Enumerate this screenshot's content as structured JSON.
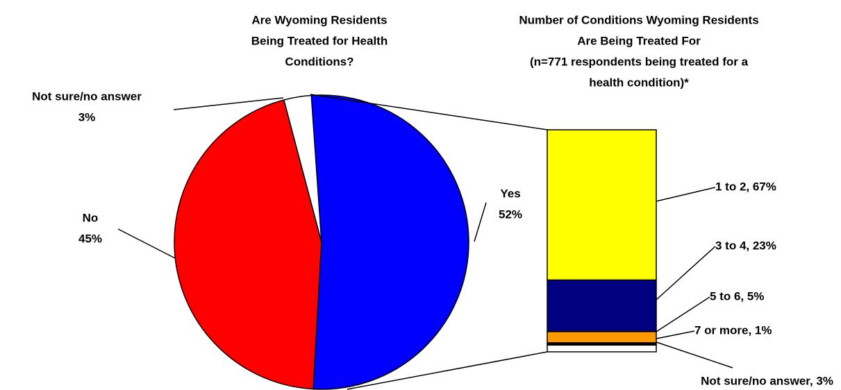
{
  "chart_data": [
    {
      "type": "pie",
      "title": [
        "Are Wyoming Residents",
        "Being Treated for Health",
        "Conditions?"
      ],
      "categories": [
        "Yes",
        "No",
        "Not sure/no answer"
      ],
      "values": [
        52,
        45,
        3
      ],
      "value_labels": [
        "52%",
        "45%",
        "3%"
      ],
      "colors": [
        "#0000ff",
        "#ff0000",
        "#ffffff"
      ]
    },
    {
      "type": "stacked-bar",
      "title": [
        "Number of Conditions Wyoming Residents",
        "Are Being Treated For",
        "(n=771 respondents being treated for a",
        "health condition)*"
      ],
      "categories": [
        "1 to 2, 67%",
        "3 to 4, 23%",
        "5 to 6, 5%",
        "7 or more, 1%",
        "Not sure/no answer, 3%"
      ],
      "values": [
        67,
        23,
        5,
        1,
        3
      ],
      "colors": [
        "#ffff00",
        "#000080",
        "#ff9900",
        "#000000",
        "#ffffff"
      ]
    }
  ]
}
